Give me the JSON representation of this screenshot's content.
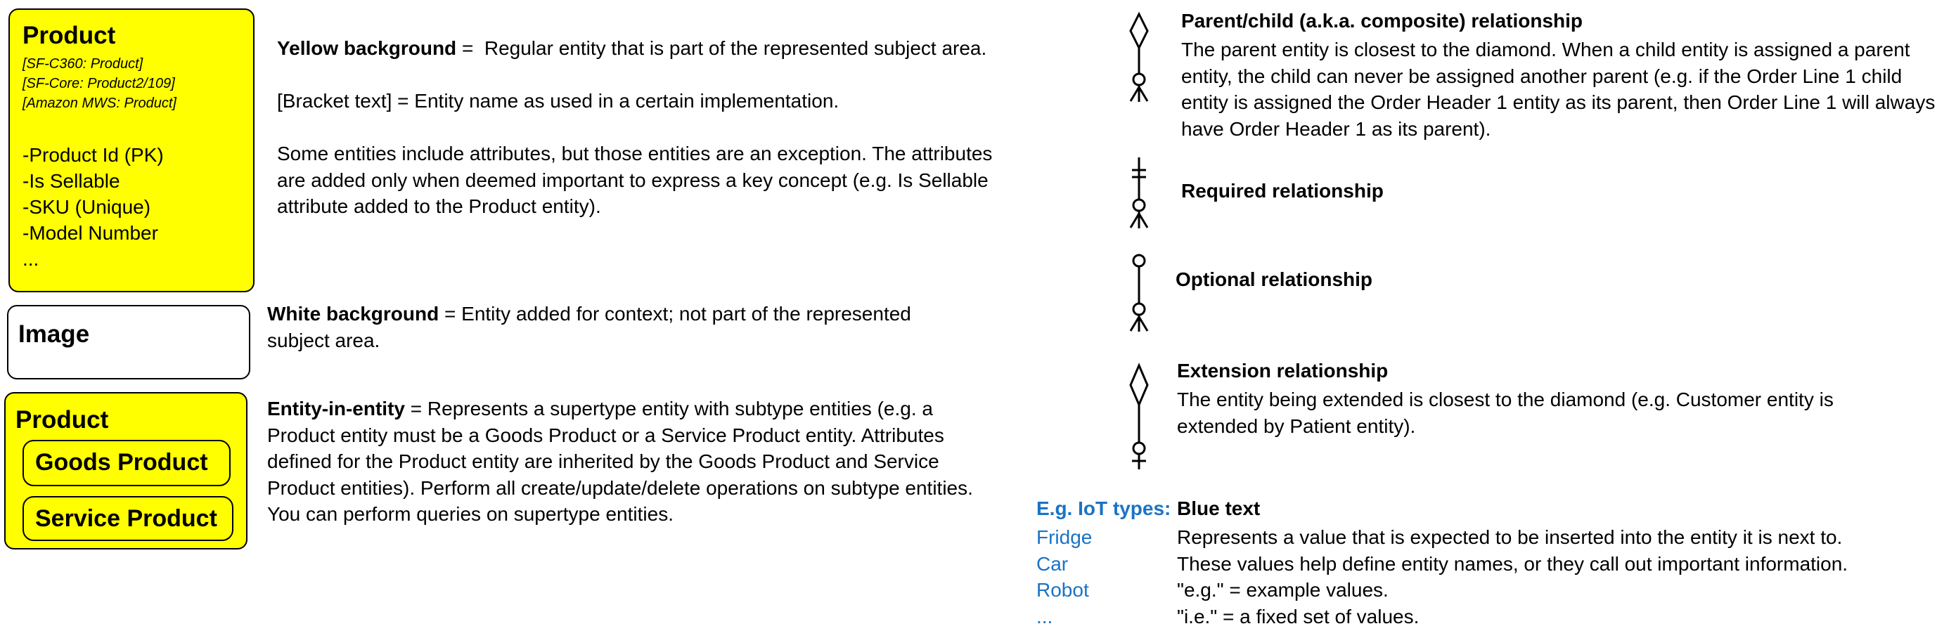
{
  "entity_product": {
    "title": "Product",
    "implementations": [
      "[SF-C360: Product]",
      "[SF-Core: Product2/109]",
      "[Amazon MWS: Product]"
    ],
    "attributes": [
      "-Product Id (PK)",
      "-Is Sellable",
      "-SKU (Unique)",
      "-Model Number",
      "..."
    ]
  },
  "entity_image": {
    "title": "Image"
  },
  "entity_supertype": {
    "title": "Product",
    "subtypes": [
      "Goods Product",
      "Service Product"
    ]
  },
  "legend_left": {
    "yellow": {
      "term": "Yellow background",
      "text": " =  Regular entity that is part of the represented subject area."
    },
    "bracket": "[Bracket text] = Entity name as used in a certain implementation.",
    "attributes_note": "Some entities include attributes, but those entities are an exception. The attributes are added only when deemed important to express a key concept (e.g. Is Sellable attribute added to the Product entity).",
    "white": {
      "term": "White background",
      "text": " = Entity added for context; not part of the represented subject area."
    },
    "entity_in_entity": {
      "term": "Entity-in-entity",
      "text": " = Represents a supertype entity with subtype entities (e.g. a Product entity must be a Goods Product or a Service Product entity. Attributes defined for the Product entity are inherited by the Goods Product and Service Product entities). Perform all create/update/delete operations on subtype entities. You can perform queries on supertype entities."
    }
  },
  "relationships": {
    "parent_child": {
      "title": "Parent/child (a.k.a. composite) relationship",
      "text": "The parent entity is closest to the diamond. When a child entity is assigned a parent entity, the child can never be assigned another parent (e.g. if the Order Line 1 child entity is assigned the Order Header 1 entity as its parent, then Order Line 1 will always have Order Header 1 as its parent)."
    },
    "required": {
      "title": "Required relationship"
    },
    "optional": {
      "title": "Optional relationship"
    },
    "extension": {
      "title": "Extension relationship",
      "text": "The entity being extended is closest to the diamond (e.g. Customer entity is extended by Patient entity)."
    }
  },
  "blue_text": {
    "example_head": "E.g. IoT types:",
    "examples": [
      "Fridge",
      "Car",
      "Robot",
      "..."
    ],
    "title": "Blue text",
    "lines": [
      "Represents a value that is expected to be inserted into the entity it is next to.",
      "These values help define entity names, or they call out important information.",
      "\"e.g.\" = example values.",
      "\"i.e.\" = a fixed set of values."
    ]
  },
  "colors": {
    "entity_yellow": "#ffff00",
    "blue_text": "#1b73c4",
    "border": "#000000"
  },
  "icons": [
    "diamond-crowsfoot-icon",
    "bar-crowsfoot-icon",
    "circle-crowsfoot-icon",
    "diamond-bar-icon"
  ]
}
